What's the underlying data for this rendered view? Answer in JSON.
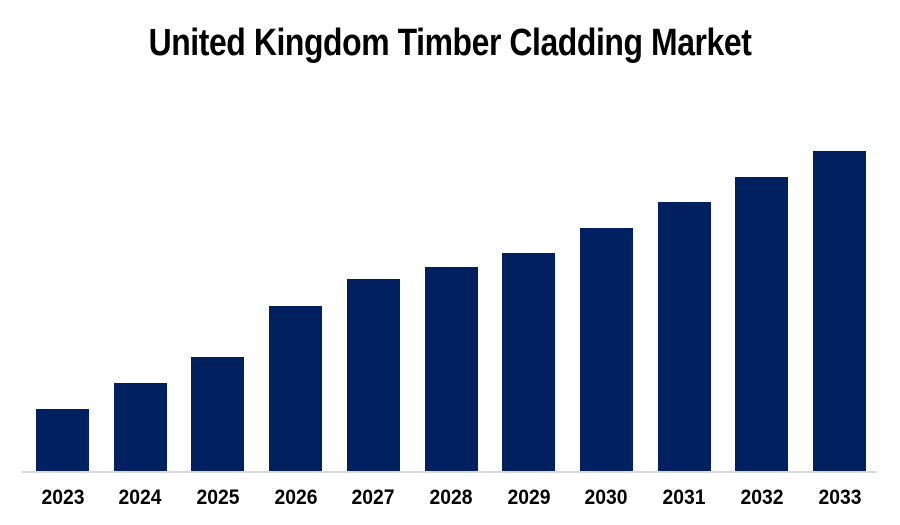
{
  "page": {
    "background_color": "#ffffff"
  },
  "chart_data": {
    "type": "bar",
    "title": "United Kingdom Timber Cladding Market",
    "xlabel": "",
    "ylabel": "",
    "categories": [
      "2023",
      "2024",
      "2025",
      "2026",
      "2027",
      "2028",
      "2029",
      "2030",
      "2031",
      "2032",
      "2033"
    ],
    "values": [
      19.5,
      27.6,
      35.7,
      51.6,
      59.8,
      63.8,
      68.0,
      75.7,
      83.8,
      91.9,
      100.0
    ],
    "value_units": "relative height, percent of tallest bar (no y-axis labels shown in chart)",
    "ylim": [
      0,
      100
    ],
    "grid": false,
    "legend": false,
    "y_axis_visible": false,
    "x_axis_line_visible": true,
    "colors": {
      "bar": "#002060",
      "axis_line": "#d9d9d9",
      "title_text": "#000000",
      "tick_label_text": "#000000",
      "background": "#ffffff"
    }
  }
}
